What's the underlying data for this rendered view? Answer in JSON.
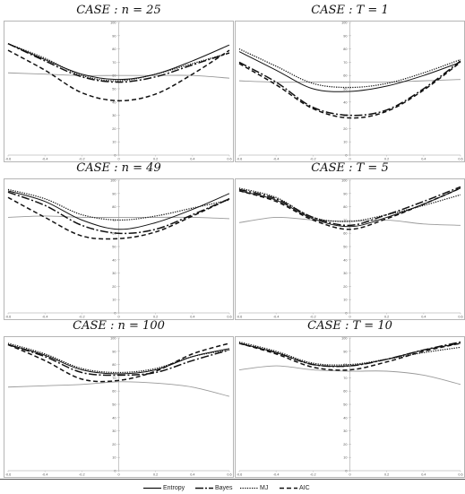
{
  "chart_data": [
    {
      "type": "line",
      "title": "CASE : n = 25",
      "x_ticks": [
        "-0.6",
        "-0.4",
        "-0.2",
        "0",
        "0.2",
        "0.4",
        "0.6"
      ],
      "y_ticks": [
        "0",
        "10",
        "20",
        "30",
        "40",
        "50",
        "60",
        "70",
        "80",
        "90",
        "100"
      ],
      "xlim": [
        -0.6,
        0.6
      ],
      "ylim": [
        0,
        100
      ],
      "x": [
        -0.6,
        -0.4,
        -0.2,
        0,
        0.2,
        0.4,
        0.6
      ],
      "series": [
        {
          "name": "Entropy",
          "values": [
            84,
            72,
            61,
            57,
            61,
            71,
            83
          ]
        },
        {
          "name": "Bayes",
          "values": [
            84,
            71,
            59,
            55,
            59,
            68,
            77
          ]
        },
        {
          "name": "MJ",
          "values": [
            84,
            73,
            60,
            56,
            61,
            69,
            77
          ]
        },
        {
          "name": "AIC",
          "values": [
            79,
            64,
            47,
            41,
            46,
            61,
            79
          ]
        },
        {
          "name": "",
          "values": [
            62,
            61,
            60,
            60,
            60,
            60,
            58
          ]
        }
      ]
    },
    {
      "type": "line",
      "title": "CASE : T = 1",
      "x_ticks": [
        "-0.6",
        "-0.4",
        "-0.2",
        "0",
        "0.2",
        "0.4",
        "0.6"
      ],
      "y_ticks": [
        "0",
        "10",
        "20",
        "30",
        "40",
        "50",
        "60",
        "70",
        "80",
        "90",
        "100"
      ],
      "xlim": [
        -0.6,
        0.6
      ],
      "ylim": [
        0,
        100
      ],
      "x": [
        -0.6,
        -0.4,
        -0.2,
        0,
        0.2,
        0.4,
        0.6
      ],
      "series": [
        {
          "name": "Entropy",
          "values": [
            78,
            64,
            50,
            48,
            52,
            60,
            70
          ]
        },
        {
          "name": "Bayes",
          "values": [
            70,
            55,
            36,
            30,
            34,
            50,
            71
          ]
        },
        {
          "name": "MJ",
          "values": [
            80,
            67,
            54,
            51,
            54,
            62,
            72
          ]
        },
        {
          "name": "AIC",
          "values": [
            69,
            53,
            35,
            28,
            33,
            49,
            70
          ]
        },
        {
          "name": "",
          "values": [
            56,
            55,
            55,
            55,
            55,
            56,
            57
          ]
        }
      ]
    },
    {
      "type": "line",
      "title": "CASE : n = 49",
      "x_ticks": [
        "-0.6",
        "-0.4",
        "-0.2",
        "0",
        "0.2",
        "0.4",
        "0.6"
      ],
      "y_ticks": [
        "0",
        "10",
        "20",
        "30",
        "40",
        "50",
        "60",
        "70",
        "80",
        "90",
        "100"
      ],
      "xlim": [
        -0.6,
        0.6
      ],
      "ylim": [
        0,
        100
      ],
      "x": [
        -0.6,
        -0.4,
        -0.2,
        0,
        0.2,
        0.4,
        0.6
      ],
      "series": [
        {
          "name": "Entropy",
          "values": [
            92,
            84,
            70,
            63,
            68,
            78,
            90
          ]
        },
        {
          "name": "Bayes",
          "values": [
            91,
            81,
            66,
            60,
            63,
            74,
            86
          ]
        },
        {
          "name": "MJ",
          "values": [
            93,
            86,
            74,
            70,
            73,
            79,
            85
          ]
        },
        {
          "name": "AIC",
          "values": [
            87,
            72,
            58,
            56,
            61,
            73,
            86
          ]
        },
        {
          "name": "",
          "values": [
            72,
            73,
            72,
            72,
            72,
            72,
            71
          ]
        }
      ]
    },
    {
      "type": "line",
      "title": "CASE : T = 5",
      "x_ticks": [
        "-0.6",
        "-0.4",
        "-0.2",
        "0",
        "0.2",
        "0.4",
        "0.6"
      ],
      "y_ticks": [
        "0",
        "10",
        "20",
        "30",
        "40",
        "50",
        "60",
        "70",
        "80",
        "90",
        "100"
      ],
      "xlim": [
        -0.6,
        0.6
      ],
      "ylim": [
        0,
        100
      ],
      "x": [
        -0.6,
        -0.4,
        -0.2,
        0,
        0.2,
        0.4,
        0.6
      ],
      "series": [
        {
          "name": "Entropy",
          "values": [
            92,
            85,
            71,
            65,
            72,
            82,
            94
          ]
        },
        {
          "name": "Bayes",
          "values": [
            93,
            86,
            72,
            66,
            74,
            84,
            95
          ]
        },
        {
          "name": "MJ",
          "values": [
            94,
            87,
            72,
            69,
            74,
            81,
            89
          ]
        },
        {
          "name": "AIC",
          "values": [
            92,
            84,
            70,
            63,
            71,
            82,
            94
          ]
        },
        {
          "name": "",
          "values": [
            68,
            72,
            70,
            69,
            70,
            67,
            66
          ]
        }
      ]
    },
    {
      "type": "line",
      "title": "CASE : n = 100",
      "x_ticks": [
        "-0.6",
        "-0.4",
        "-0.2",
        "0",
        "0.2",
        "0.4",
        "0.6"
      ],
      "y_ticks": [
        "0",
        "10",
        "20",
        "30",
        "40",
        "50",
        "60",
        "70",
        "80",
        "90",
        "100"
      ],
      "xlim": [
        -0.6,
        0.6
      ],
      "ylim": [
        0,
        100
      ],
      "x": [
        -0.6,
        -0.4,
        -0.2,
        0,
        0.2,
        0.4,
        0.6
      ],
      "series": [
        {
          "name": "Entropy",
          "values": [
            95,
            87,
            76,
            73,
            76,
            86,
            92
          ]
        },
        {
          "name": "Bayes",
          "values": [
            95,
            86,
            74,
            72,
            74,
            83,
            91
          ]
        },
        {
          "name": "MJ",
          "values": [
            96,
            88,
            77,
            74,
            77,
            86,
            91
          ]
        },
        {
          "name": "AIC",
          "values": [
            95,
            83,
            69,
            68,
            75,
            88,
            96
          ]
        },
        {
          "name": "",
          "values": [
            63,
            64,
            65,
            67,
            66,
            63,
            56
          ]
        }
      ]
    },
    {
      "type": "line",
      "title": "CASE : T = 10",
      "x_ticks": [
        "-0.6",
        "-0.4",
        "-0.2",
        "0",
        "0.2",
        "0.4",
        "0.6"
      ],
      "y_ticks": [
        "0",
        "10",
        "20",
        "30",
        "40",
        "50",
        "60",
        "70",
        "80",
        "90",
        "100"
      ],
      "xlim": [
        -0.6,
        0.6
      ],
      "ylim": [
        0,
        100
      ],
      "x": [
        -0.6,
        -0.4,
        -0.2,
        0,
        0.2,
        0.4,
        0.6
      ],
      "series": [
        {
          "name": "Entropy",
          "values": [
            96,
            89,
            80,
            79,
            84,
            91,
            96
          ]
        },
        {
          "name": "Bayes",
          "values": [
            96,
            89,
            80,
            79,
            84,
            91,
            97
          ]
        },
        {
          "name": "MJ",
          "values": [
            97,
            90,
            81,
            80,
            84,
            89,
            93
          ]
        },
        {
          "name": "AIC",
          "values": [
            96,
            88,
            78,
            76,
            82,
            90,
            96
          ]
        },
        {
          "name": "",
          "values": [
            76,
            79,
            76,
            75,
            75,
            72,
            65
          ]
        }
      ]
    }
  ],
  "legend": {
    "items": [
      {
        "label": "Entropy",
        "style": "solid"
      },
      {
        "label": "Bayes",
        "style": "longdash"
      },
      {
        "label": "MJ",
        "style": "dotted"
      },
      {
        "label": "AIC",
        "style": "dashed"
      }
    ]
  },
  "colors": {
    "main": "#111111",
    "gray": "#9a9a9a",
    "gridline": "#bdbdbd"
  }
}
